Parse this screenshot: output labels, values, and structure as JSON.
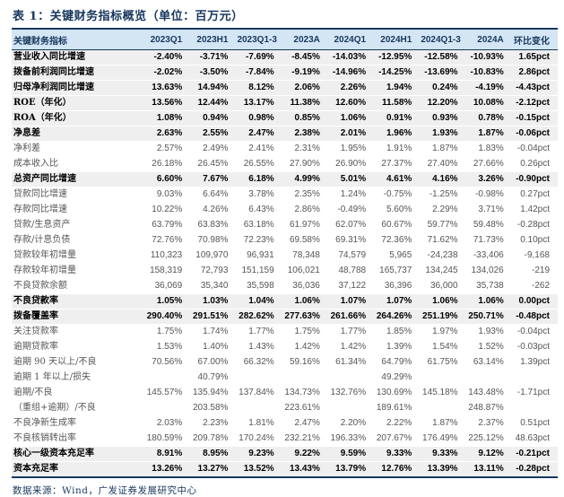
{
  "title": "表 1：关键财务指标概览（单位：百万元）",
  "footer": {
    "source": "数据来源：Wind，广发证券发展研究中心"
  },
  "colors": {
    "accent_navy": "#17375E",
    "header_bg": "#D4E6F4",
    "highlight_row_bg": "#EFEFEF",
    "normal_text": "#555555",
    "highlight_text": "#000000"
  },
  "table": {
    "headers": [
      "关键财务指标",
      "2023Q1",
      "2023H1",
      "2023Q1-3",
      "2023A",
      "2024Q1",
      "2024H1",
      "2024Q1-3",
      "2024A",
      "环比变化"
    ],
    "rows": [
      {
        "label": "营业收入同比增速",
        "values": [
          "-2.40%",
          "-3.71%",
          "-7.69%",
          "-8.45%",
          "-14.03%",
          "-12.95%",
          "-12.58%",
          "-10.93%",
          "1.65pct"
        ],
        "highlight": true
      },
      {
        "label": "拨备前利润同比增速",
        "values": [
          "-2.02%",
          "-3.50%",
          "-7.84%",
          "-9.19%",
          "-14.96%",
          "-14.25%",
          "-13.69%",
          "-10.83%",
          "2.86pct"
        ],
        "highlight": true
      },
      {
        "label": "归母净利润同比增速",
        "values": [
          "13.63%",
          "14.94%",
          "8.12%",
          "2.06%",
          "2.26%",
          "1.94%",
          "0.24%",
          "-4.19%",
          "-4.43pct"
        ],
        "highlight": true
      },
      {
        "label": "ROE（年化）",
        "values": [
          "13.56%",
          "12.44%",
          "13.17%",
          "11.38%",
          "12.60%",
          "11.58%",
          "12.20%",
          "10.08%",
          "-2.12pct"
        ],
        "highlight": true
      },
      {
        "label": "ROA（年化）",
        "values": [
          "1.08%",
          "0.94%",
          "0.98%",
          "0.85%",
          "1.06%",
          "0.91%",
          "0.93%",
          "0.78%",
          "-0.15pct"
        ],
        "highlight": true
      },
      {
        "label": "净息差",
        "values": [
          "2.63%",
          "2.55%",
          "2.47%",
          "2.38%",
          "2.01%",
          "1.96%",
          "1.93%",
          "1.87%",
          "-0.06pct"
        ],
        "highlight": true
      },
      {
        "label": "净利差",
        "values": [
          "2.57%",
          "2.49%",
          "2.41%",
          "2.31%",
          "1.95%",
          "1.91%",
          "1.87%",
          "1.83%",
          "-0.04pct"
        ],
        "highlight": false
      },
      {
        "label": "成本收入比",
        "values": [
          "26.18%",
          "26.45%",
          "26.55%",
          "27.90%",
          "26.90%",
          "27.37%",
          "27.40%",
          "27.66%",
          "0.26pct"
        ],
        "highlight": false
      },
      {
        "label": "总资产同比增速",
        "values": [
          "6.60%",
          "7.67%",
          "6.18%",
          "4.99%",
          "5.01%",
          "4.61%",
          "4.16%",
          "3.26%",
          "-0.90pct"
        ],
        "highlight": true
      },
      {
        "label": "贷款同比增速",
        "values": [
          "9.03%",
          "6.64%",
          "3.78%",
          "2.35%",
          "1.24%",
          "-0.75%",
          "-1.25%",
          "-0.98%",
          "0.27pct"
        ],
        "highlight": false
      },
      {
        "label": "存款同比增速",
        "values": [
          "10.22%",
          "4.26%",
          "6.43%",
          "2.86%",
          "-0.49%",
          "5.60%",
          "2.29%",
          "3.71%",
          "1.42pct"
        ],
        "highlight": false
      },
      {
        "label": "贷款/生息资产",
        "values": [
          "63.79%",
          "63.83%",
          "63.18%",
          "61.97%",
          "62.07%",
          "60.67%",
          "59.77%",
          "59.48%",
          "-0.28pct"
        ],
        "highlight": false
      },
      {
        "label": "存款/计息负债",
        "values": [
          "72.76%",
          "70.98%",
          "72.23%",
          "69.58%",
          "69.31%",
          "72.36%",
          "71.62%",
          "71.73%",
          "0.10pct"
        ],
        "highlight": false
      },
      {
        "label": "贷款较年初增量",
        "values": [
          "110,323",
          "109,970",
          "96,931",
          "78,348",
          "74,579",
          "5,965",
          "-24,238",
          "-33,406",
          "-9,168"
        ],
        "highlight": false
      },
      {
        "label": "存款较年初增量",
        "values": [
          "158,319",
          "72,793",
          "151,159",
          "106,021",
          "48,788",
          "165,737",
          "134,245",
          "134,026",
          "-219"
        ],
        "highlight": false
      },
      {
        "label": "不良贷款余额",
        "values": [
          "36,069",
          "35,340",
          "35,598",
          "36,036",
          "37,122",
          "36,396",
          "36,000",
          "35,738",
          "-262"
        ],
        "highlight": false
      },
      {
        "label": "不良贷款率",
        "values": [
          "1.05%",
          "1.03%",
          "1.04%",
          "1.06%",
          "1.07%",
          "1.07%",
          "1.06%",
          "1.06%",
          "0.00pct"
        ],
        "highlight": true
      },
      {
        "label": "拨备覆盖率",
        "values": [
          "290.40%",
          "291.51%",
          "282.62%",
          "277.63%",
          "261.66%",
          "264.26%",
          "251.19%",
          "250.71%",
          "-0.48pct"
        ],
        "highlight": true
      },
      {
        "label": "关注贷款率",
        "values": [
          "1.75%",
          "1.74%",
          "1.77%",
          "1.75%",
          "1.77%",
          "1.85%",
          "1.97%",
          "1.93%",
          "-0.04pct"
        ],
        "highlight": false
      },
      {
        "label": "逾期贷款率",
        "values": [
          "1.53%",
          "1.40%",
          "1.43%",
          "1.42%",
          "1.42%",
          "1.39%",
          "1.54%",
          "1.52%",
          "-0.03pct"
        ],
        "highlight": false
      },
      {
        "label": "逾期 90 天以上/不良",
        "values": [
          "70.56%",
          "67.00%",
          "66.32%",
          "59.16%",
          "61.34%",
          "64.79%",
          "61.75%",
          "63.14%",
          "1.39pct"
        ],
        "highlight": false
      },
      {
        "label": "逾期 1 年以上/损失",
        "values": [
          "",
          "40.79%",
          "",
          "",
          "",
          "49.29%",
          "",
          "",
          ""
        ],
        "highlight": false
      },
      {
        "label": "逾期/不良",
        "values": [
          "145.57%",
          "135.94%",
          "137.84%",
          "134.73%",
          "132.76%",
          "130.69%",
          "145.18%",
          "143.48%",
          "-1.71pct"
        ],
        "highlight": false
      },
      {
        "label": "（重组+逾期）/不良",
        "values": [
          "",
          "203.58%",
          "",
          "223.61%",
          "",
          "189.61%",
          "",
          "248.87%",
          ""
        ],
        "highlight": false
      },
      {
        "label": "不良净新生成率",
        "values": [
          "2.03%",
          "2.23%",
          "1.81%",
          "2.47%",
          "2.20%",
          "2.22%",
          "1.87%",
          "2.37%",
          "0.51pct"
        ],
        "highlight": false
      },
      {
        "label": "不良核销转出率",
        "values": [
          "180.59%",
          "209.78%",
          "170.24%",
          "232.21%",
          "196.33%",
          "207.67%",
          "176.49%",
          "225.12%",
          "48.63pct"
        ],
        "highlight": false
      },
      {
        "label": "核心一级资本充足率",
        "values": [
          "8.91%",
          "8.95%",
          "9.23%",
          "9.22%",
          "9.59%",
          "9.33%",
          "9.33%",
          "9.12%",
          "-0.21pct"
        ],
        "highlight": true
      },
      {
        "label": "资本充足率",
        "values": [
          "13.26%",
          "13.27%",
          "13.52%",
          "13.43%",
          "13.79%",
          "12.76%",
          "13.39%",
          "13.11%",
          "-0.28pct"
        ],
        "highlight": true
      }
    ]
  }
}
